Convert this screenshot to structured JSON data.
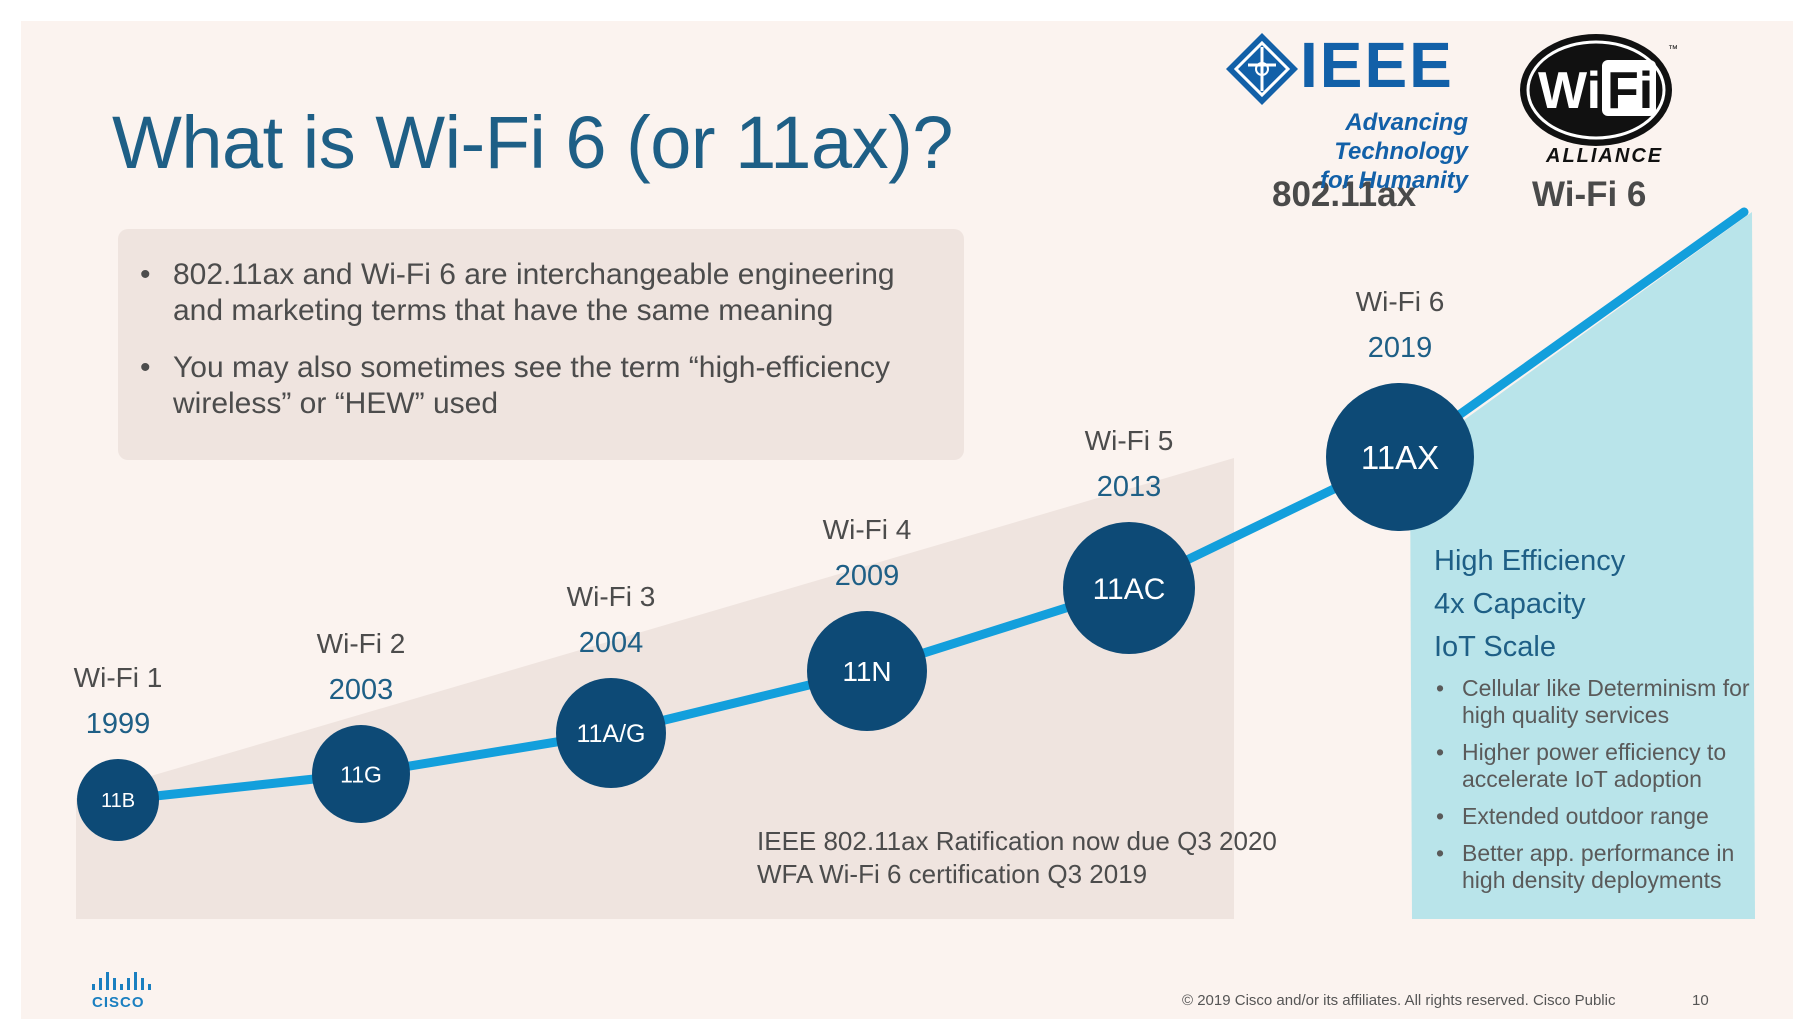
{
  "title": "What is Wi-Fi 6 (or 11ax)?",
  "callout": {
    "bullets": [
      "802.11ax and Wi-Fi 6 are interchangeable engineering and marketing terms that have the same meaning",
      "You may also sometimes see the term “high-efficiency wireless” or “HEW” used"
    ]
  },
  "logos": {
    "ieee_word": "IEEE",
    "ieee_tagline_1": "Advancing Technology",
    "ieee_tagline_2": "for Humanity",
    "ieee_standard": "802.11ax",
    "wifi_word_1": "Wi",
    "wifi_word_2": "Fi",
    "wifi_alliance": "ALLIANCE",
    "wifi_standard": "Wi-Fi 6"
  },
  "timeline": [
    {
      "name": "Wi-Fi 1",
      "year": "1999",
      "code": "11B"
    },
    {
      "name": "Wi-Fi 2",
      "year": "2003",
      "code": "11G"
    },
    {
      "name": "Wi-Fi 3",
      "year": "2004",
      "code": "11A/G"
    },
    {
      "name": "Wi-Fi 4",
      "year": "2009",
      "code": "11N"
    },
    {
      "name": "Wi-Fi 5",
      "year": "2013",
      "code": "11AC"
    },
    {
      "name": "Wi-Fi 6",
      "year": "2019",
      "code": "11AX"
    }
  ],
  "info": {
    "headlines": [
      "High Efficiency",
      "4x Capacity",
      "IoT Scale"
    ],
    "bullets": [
      "Cellular like Determinism for high quality services",
      "Higher power efficiency to accelerate IoT adoption",
      "Extended outdoor range",
      "Better app. performance in high density deployments"
    ]
  },
  "notes": [
    "IEEE 802.11ax Ratification now due Q3 2020",
    "WFA Wi-Fi 6 certification Q3 2019"
  ],
  "footer": {
    "copyright": "© 2019  Cisco and/or its affiliates. All rights reserved.   Cisco Public",
    "page": "10",
    "brand": "CISCO"
  },
  "colors": {
    "title": "#1e5f86",
    "node": "#0d4a76",
    "line": "#139fdc",
    "wedge": "#b9e4ea",
    "area": "#efe4df"
  }
}
